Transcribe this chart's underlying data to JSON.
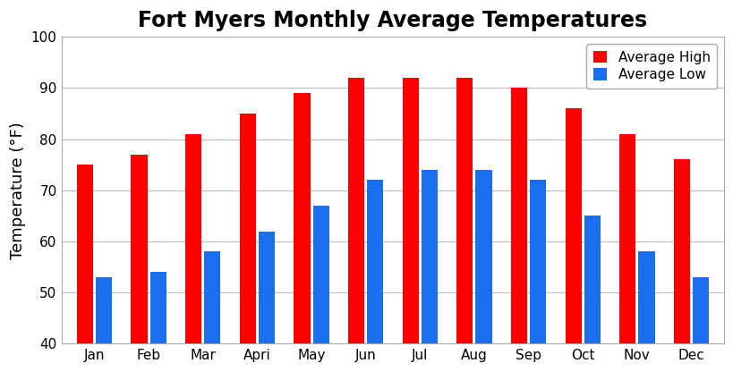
{
  "title": "Fort Myers Monthly Average Temperatures",
  "ylabel": "Temperature (°F)",
  "months": [
    "Jan",
    "Feb",
    "Mar",
    "Apri",
    "May",
    "Jun",
    "Jul",
    "Aug",
    "Sep",
    "Oct",
    "Nov",
    "Dec"
  ],
  "avg_high": [
    75,
    77,
    81,
    85,
    89,
    92,
    92,
    92,
    90,
    86,
    81,
    76
  ],
  "avg_low": [
    53,
    54,
    58,
    62,
    67,
    72,
    74,
    74,
    72,
    65,
    58,
    53
  ],
  "color_high": "#ff0000",
  "color_low": "#1a6fef",
  "ylim": [
    40,
    100
  ],
  "yticks": [
    40,
    50,
    60,
    70,
    80,
    90,
    100
  ],
  "legend_high": "Average High",
  "legend_low": "Average Low",
  "title_fontsize": 17,
  "label_fontsize": 13,
  "tick_fontsize": 11,
  "legend_fontsize": 11,
  "bar_width": 0.3,
  "bar_gap": 0.05,
  "background_color": "#ffffff",
  "grid_color": "#bbbbbb"
}
